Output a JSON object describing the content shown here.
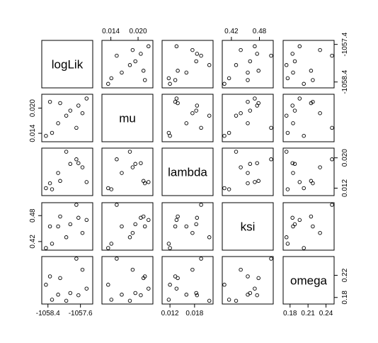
{
  "chart_data": {
    "type": "scatter",
    "variables": [
      "logLik",
      "mu",
      "lambda",
      "ksi",
      "omega"
    ],
    "observations": [
      {
        "logLik": -1057.45,
        "mu": 0.0223,
        "lambda": 0.0136,
        "ksi": 0.47,
        "omega": 0.196
      },
      {
        "logLik": -1057.55,
        "mu": 0.0188,
        "lambda": 0.0175,
        "ksi": 0.44,
        "omega": 0.23
      },
      {
        "logLik": -1057.65,
        "mu": 0.0206,
        "lambda": 0.0186,
        "ksi": 0.475,
        "omega": 0.184
      },
      {
        "logLik": -1057.7,
        "mu": 0.0153,
        "lambda": 0.0196,
        "ksi": 0.505,
        "omega": 0.25
      },
      {
        "logLik": -1057.85,
        "mu": 0.0194,
        "lambda": 0.0184,
        "ksi": 0.46,
        "omega": 0.188
      },
      {
        "logLik": -1057.95,
        "mu": 0.0182,
        "lambda": 0.0216,
        "ksi": 0.43,
        "omega": 0.174
      },
      {
        "logLik": -1058.1,
        "mu": 0.0212,
        "lambda": 0.0139,
        "ksi": 0.478,
        "omega": 0.215
      },
      {
        "logLik": -1058.15,
        "mu": 0.0164,
        "lambda": 0.016,
        "ksi": 0.455,
        "omega": 0.185
      },
      {
        "logLik": -1058.3,
        "mu": 0.0141,
        "lambda": 0.0117,
        "ksi": 0.415,
        "omega": 0.176
      },
      {
        "logLik": -1058.35,
        "mu": 0.0215,
        "lambda": 0.0133,
        "ksi": 0.455,
        "omega": 0.218
      },
      {
        "logLik": -1058.45,
        "mu": 0.0134,
        "lambda": 0.012,
        "ksi": 0.405,
        "omega": 0.203
      }
    ],
    "axis_ticks": {
      "logLik": [
        {
          "v": -1058.4,
          "label": "-1058.4"
        },
        {
          "v": -1057.6,
          "label": "-1057.6"
        }
      ],
      "logLik_right": [
        {
          "v": -1058.4,
          "label": "-1058.4"
        },
        {
          "v": -1057.4,
          "label": "-1057.4"
        }
      ],
      "mu": [
        {
          "v": 0.014,
          "label": "0.014"
        },
        {
          "v": 0.02,
          "label": "0.020"
        }
      ],
      "lambda": [
        {
          "v": 0.012,
          "label": "0.012"
        },
        {
          "v": 0.018,
          "label": "0.018"
        }
      ],
      "lambda_right": [
        {
          "v": 0.012,
          "label": "0.012"
        },
        {
          "v": 0.02,
          "label": "0.020"
        }
      ],
      "ksi": [
        {
          "v": 0.42,
          "label": "0.42"
        },
        {
          "v": 0.48,
          "label": "0.48"
        }
      ],
      "omega": [
        {
          "v": 0.18,
          "label": "0.18"
        },
        {
          "v": 0.21,
          "label": "0.21"
        },
        {
          "v": 0.24,
          "label": "0.24"
        }
      ],
      "omega_right": [
        {
          "v": 0.18,
          "label": "0.18"
        },
        {
          "v": 0.22,
          "label": "0.22"
        }
      ]
    },
    "ranges": {
      "logLik": [
        -1058.5,
        -1057.35
      ],
      "mu": [
        0.0125,
        0.0228
      ],
      "lambda": [
        0.0106,
        0.022
      ],
      "ksi": [
        0.405,
        0.505
      ],
      "omega": [
        0.172,
        0.25
      ]
    },
    "point_style": "open-circle",
    "point_color": "#000000"
  }
}
